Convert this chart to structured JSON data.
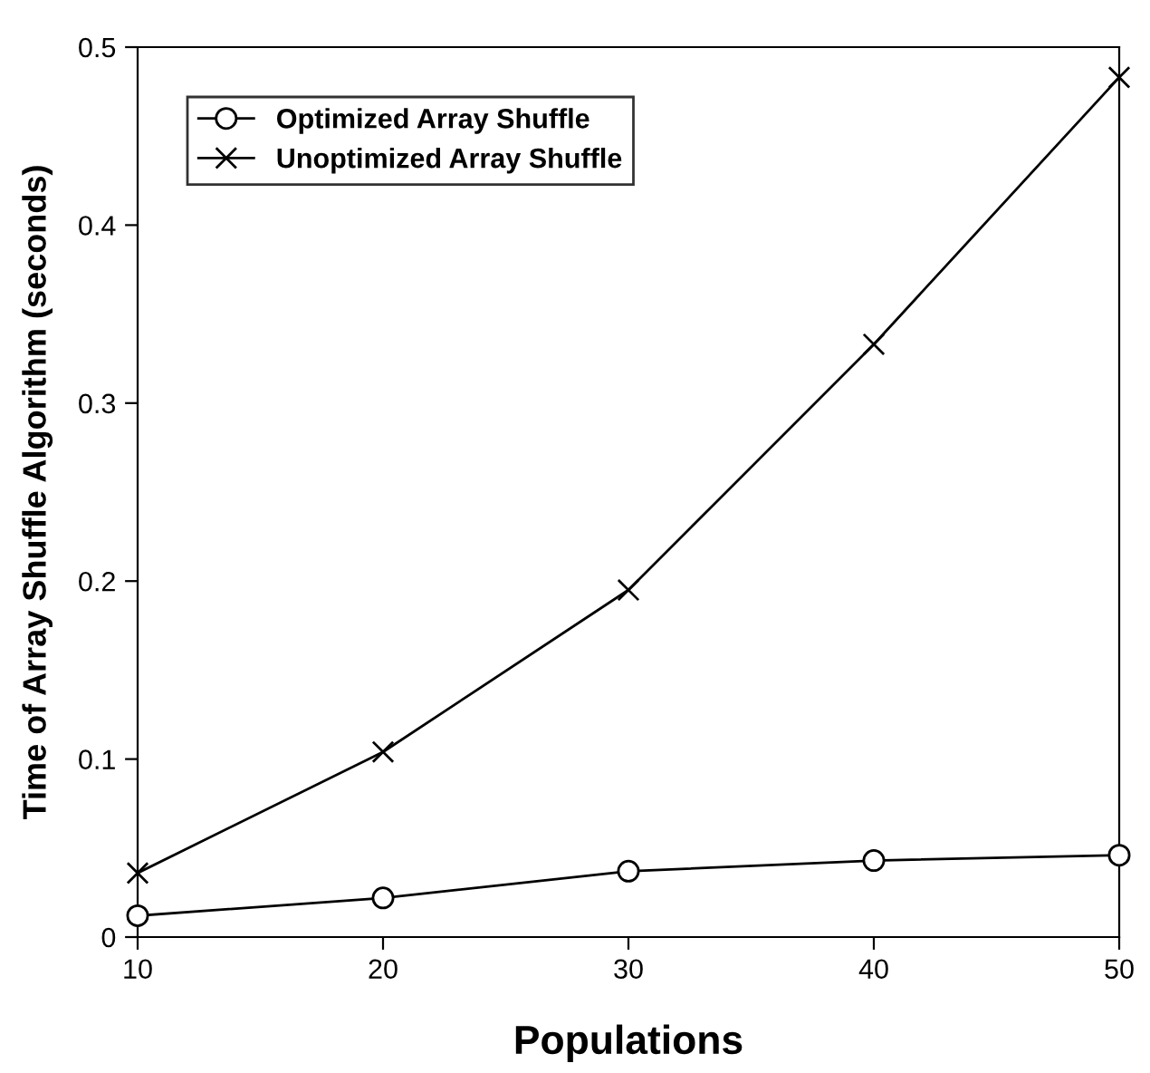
{
  "chart_data": {
    "type": "line",
    "xlabel": "Populations",
    "ylabel": "Time of Array Shuffle Algorithm (seconds)",
    "x": [
      10,
      20,
      30,
      40,
      50
    ],
    "series": [
      {
        "name": "Optimized Array Shuffle",
        "color": "#000000",
        "marker": "circle",
        "values": [
          0.012,
          0.022,
          0.037,
          0.043,
          0.046
        ]
      },
      {
        "name": "Unoptimized Array Shuffle",
        "color": "#000000",
        "marker": "cross",
        "values": [
          0.036,
          0.104,
          0.195,
          0.333,
          0.483
        ]
      }
    ],
    "xlim": [
      10,
      50
    ],
    "xticks": [
      10,
      20,
      30,
      40,
      50
    ],
    "ylim": [
      0,
      0.5
    ],
    "yticks": [
      0,
      0.1,
      0.2,
      0.3,
      0.4,
      0.5
    ],
    "grid": false,
    "legend": "top left",
    "line_style": "solid"
  }
}
